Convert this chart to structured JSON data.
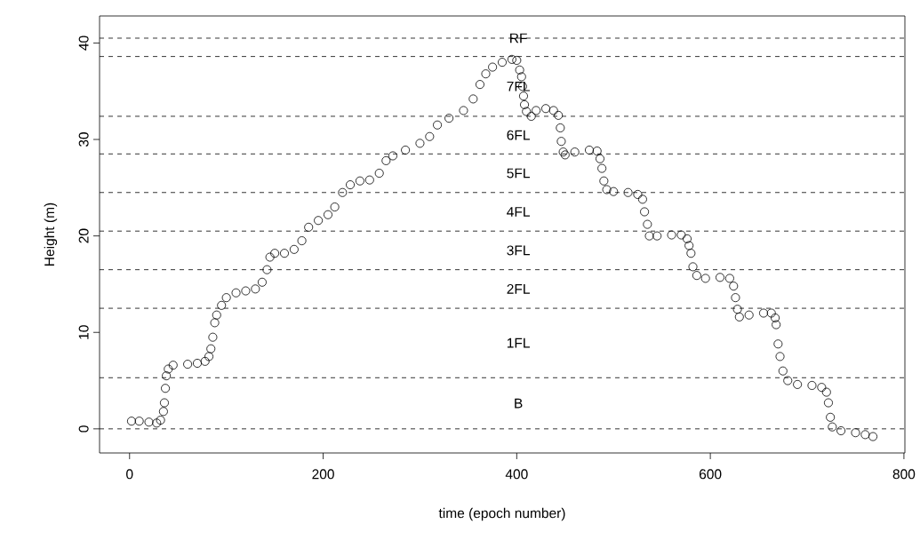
{
  "chart_data": {
    "type": "scatter",
    "xlabel": "time (epoch number)",
    "ylabel": "Height (m)",
    "marker": "circle",
    "grid": false,
    "xlim": [
      -31,
      801
    ],
    "ylim": [
      -2.5,
      42.8
    ],
    "xticks": [
      0,
      200,
      400,
      600,
      800
    ],
    "yticks": [
      0,
      10,
      20,
      30,
      40
    ],
    "series": [
      {
        "color": "#000000",
        "x": [
          2,
          10,
          20,
          28,
          32,
          35,
          36,
          37,
          38,
          40,
          45,
          60,
          70,
          78,
          82,
          84,
          86,
          88,
          90,
          95,
          100,
          110,
          120,
          130,
          137,
          142,
          145,
          150,
          160,
          170,
          178,
          185,
          195,
          205,
          212,
          220,
          228,
          238,
          248,
          258,
          265,
          272,
          285,
          300,
          310,
          318,
          330,
          345,
          355,
          362,
          368,
          375,
          385,
          395,
          400,
          403,
          405,
          406,
          407,
          408,
          410,
          415,
          420,
          430,
          438,
          443,
          445,
          446,
          448,
          450,
          460,
          475,
          483,
          486,
          488,
          490,
          493,
          500,
          515,
          525,
          530,
          532,
          535,
          537,
          545,
          560,
          570,
          576,
          578,
          580,
          582,
          586,
          595,
          610,
          620,
          624,
          626,
          628,
          630,
          640,
          655,
          663,
          667,
          668,
          670,
          672,
          675,
          680,
          690,
          705,
          715,
          720,
          722,
          724,
          726,
          735,
          750,
          760,
          768
        ],
        "values": [
          0.8,
          0.8,
          0.7,
          0.6,
          0.9,
          1.8,
          2.7,
          4.2,
          5.5,
          6.2,
          6.6,
          6.7,
          6.8,
          7.0,
          7.5,
          8.3,
          9.5,
          11.0,
          11.8,
          12.8,
          13.6,
          14.1,
          14.3,
          14.5,
          15.2,
          16.5,
          17.8,
          18.2,
          18.2,
          18.6,
          19.5,
          20.9,
          21.6,
          22.2,
          23.0,
          24.5,
          25.3,
          25.7,
          25.8,
          26.5,
          27.8,
          28.3,
          28.9,
          29.6,
          30.3,
          31.5,
          32.2,
          33.0,
          34.2,
          35.7,
          36.8,
          37.5,
          38.0,
          38.3,
          38.2,
          37.2,
          36.5,
          35.5,
          34.5,
          33.6,
          32.9,
          32.4,
          33.0,
          33.2,
          33.0,
          32.5,
          31.2,
          29.8,
          28.7,
          28.4,
          28.7,
          28.9,
          28.8,
          28.0,
          27.0,
          25.7,
          24.8,
          24.6,
          24.5,
          24.3,
          23.8,
          22.5,
          21.2,
          20.0,
          20.0,
          20.1,
          20.1,
          19.7,
          19.0,
          18.2,
          16.8,
          15.9,
          15.6,
          15.7,
          15.6,
          14.8,
          13.6,
          12.4,
          11.6,
          11.8,
          12.0,
          12.0,
          11.5,
          10.8,
          8.8,
          7.5,
          6.0,
          5.0,
          4.6,
          4.5,
          4.3,
          3.8,
          2.7,
          1.2,
          0.2,
          -0.2,
          -0.4,
          -0.6,
          -0.8
        ]
      }
    ],
    "ref_lines": [
      {
        "axis": "y",
        "value": 40.5,
        "color": "#000000",
        "line_style": "dashed"
      },
      {
        "axis": "y",
        "value": 38.6,
        "color": "#000000",
        "line_style": "dashed"
      },
      {
        "axis": "y",
        "value": 32.4,
        "color": "#000000",
        "line_style": "dashed"
      },
      {
        "axis": "y",
        "value": 28.5,
        "color": "#000000",
        "line_style": "dashed"
      },
      {
        "axis": "y",
        "value": 24.5,
        "color": "#000000",
        "line_style": "dashed"
      },
      {
        "axis": "y",
        "value": 20.5,
        "color": "#000000",
        "line_style": "dashed"
      },
      {
        "axis": "y",
        "value": 16.5,
        "color": "#000000",
        "line_style": "dashed"
      },
      {
        "axis": "y",
        "value": 12.5,
        "color": "#000000",
        "line_style": "dashed"
      },
      {
        "axis": "y",
        "value": 5.3,
        "color": "#000000",
        "line_style": "dashed"
      },
      {
        "axis": "y",
        "value": 0,
        "color": "#000000",
        "line_style": "dashed"
      }
    ],
    "annotations": [
      "RF",
      "7FL",
      "6FL",
      "5FL",
      "4FL",
      "3FL",
      "2FL",
      "1FL",
      "B"
    ]
  }
}
